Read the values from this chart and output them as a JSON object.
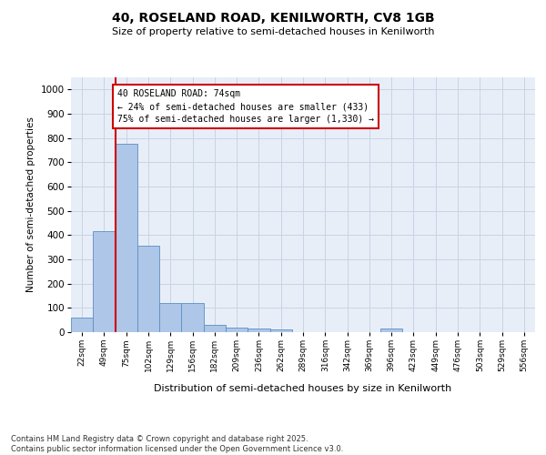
{
  "title_line1": "40, ROSELAND ROAD, KENILWORTH, CV8 1GB",
  "title_line2": "Size of property relative to semi-detached houses in Kenilworth",
  "xlabel": "Distribution of semi-detached houses by size in Kenilworth",
  "ylabel": "Number of semi-detached properties",
  "categories": [
    "22sqm",
    "49sqm",
    "75sqm",
    "102sqm",
    "129sqm",
    "156sqm",
    "182sqm",
    "209sqm",
    "236sqm",
    "262sqm",
    "289sqm",
    "316sqm",
    "342sqm",
    "369sqm",
    "396sqm",
    "423sqm",
    "449sqm",
    "476sqm",
    "503sqm",
    "529sqm",
    "556sqm"
  ],
  "values": [
    60,
    415,
    775,
    355,
    120,
    120,
    30,
    20,
    15,
    10,
    0,
    0,
    0,
    0,
    15,
    0,
    0,
    0,
    0,
    0,
    0
  ],
  "bar_color": "#aec6e8",
  "bar_edge_color": "#5a8fc2",
  "vline_x": 1.5,
  "vline_color": "#cc0000",
  "annotation_text": "40 ROSELAND ROAD: 74sqm\n← 24% of semi-detached houses are smaller (433)\n75% of semi-detached houses are larger (1,330) →",
  "annotation_box_edgecolor": "#cc0000",
  "ylim": [
    0,
    1050
  ],
  "yticks": [
    0,
    100,
    200,
    300,
    400,
    500,
    600,
    700,
    800,
    900,
    1000
  ],
  "grid_color": "#c8d4e4",
  "ax_bg_color": "#e8eef8",
  "footer_line1": "Contains HM Land Registry data © Crown copyright and database right 2025.",
  "footer_line2": "Contains public sector information licensed under the Open Government Licence v3.0."
}
